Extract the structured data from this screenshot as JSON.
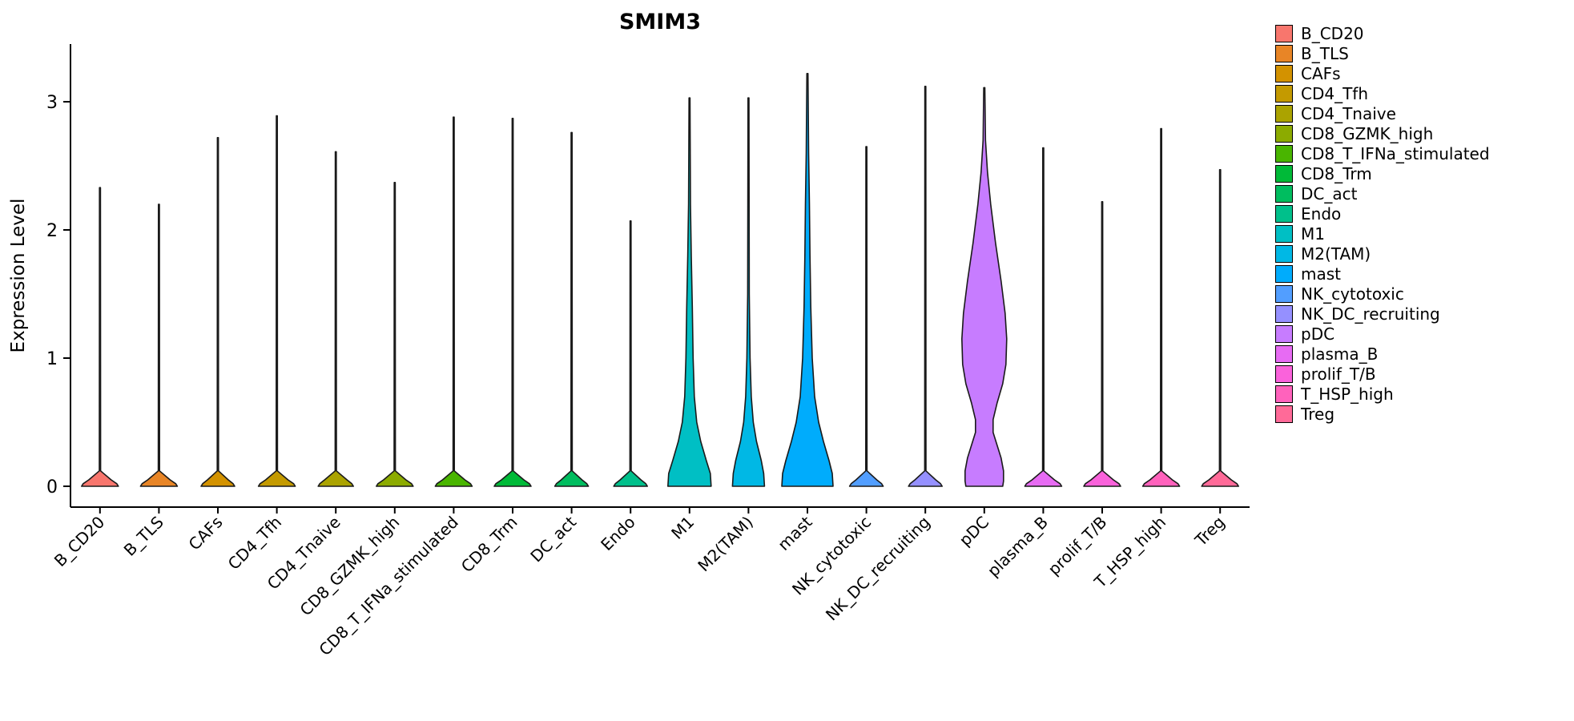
{
  "chart_data": {
    "type": "violin",
    "title": "SMIM3",
    "ylabel": "Expression Level",
    "xlabel": "",
    "yticks": [
      "0",
      "1",
      "2",
      "3"
    ],
    "ylim": [
      0,
      3.45
    ],
    "grid": false,
    "legend_position": "right",
    "categories": [
      "B_CD20",
      "B_TLS",
      "CAFs",
      "CD4_Tfh",
      "CD4_Tnaive",
      "CD8_GZMK_high",
      "CD8_T_IFNa_stimulated",
      "CD8_Trm",
      "DC_act",
      "Endo",
      "M1",
      "M2(TAM)",
      "mast",
      "NK_cytotoxic",
      "NK_DC_recruiting",
      "pDC",
      "plasma_B",
      "prolif_T/B",
      "T_HSP_high",
      "Treg"
    ],
    "series": [
      {
        "name": "B_CD20",
        "color": "#F8766D",
        "max_expression": 2.33,
        "profile": [
          [
            2.33,
            0.6
          ],
          [
            0.12,
            0.8
          ],
          [
            0.05,
            14
          ],
          [
            0.02,
            21
          ],
          [
            0,
            23
          ]
        ]
      },
      {
        "name": "B_TLS",
        "color": "#E88526",
        "max_expression": 2.2,
        "profile": [
          [
            2.2,
            0.6
          ],
          [
            0.12,
            0.8
          ],
          [
            0.05,
            14
          ],
          [
            0.02,
            21
          ],
          [
            0,
            23
          ]
        ]
      },
      {
        "name": "CAFs",
        "color": "#D39200",
        "max_expression": 2.72,
        "profile": [
          [
            2.72,
            0.6
          ],
          [
            0.12,
            0.8
          ],
          [
            0.05,
            13
          ],
          [
            0.02,
            19
          ],
          [
            0,
            21
          ]
        ]
      },
      {
        "name": "CD4_Tfh",
        "color": "#C49A00",
        "max_expression": 2.89,
        "profile": [
          [
            2.89,
            0.6
          ],
          [
            0.12,
            0.8
          ],
          [
            0.05,
            14
          ],
          [
            0.02,
            21
          ],
          [
            0,
            23
          ]
        ]
      },
      {
        "name": "CD4_Tnaive",
        "color": "#ABA300",
        "max_expression": 2.61,
        "profile": [
          [
            2.61,
            0.6
          ],
          [
            0.12,
            0.8
          ],
          [
            0.05,
            14
          ],
          [
            0.02,
            20
          ],
          [
            0,
            22
          ]
        ]
      },
      {
        "name": "CD8_GZMK_high",
        "color": "#8CAB00",
        "max_expression": 2.37,
        "profile": [
          [
            2.37,
            0.6
          ],
          [
            0.12,
            0.8
          ],
          [
            0.05,
            14
          ],
          [
            0.02,
            21
          ],
          [
            0,
            23
          ]
        ]
      },
      {
        "name": "CD8_T_IFNa_stimulated",
        "color": "#49B500",
        "max_expression": 2.88,
        "profile": [
          [
            2.88,
            0.6
          ],
          [
            0.12,
            0.8
          ],
          [
            0.05,
            14
          ],
          [
            0.02,
            21
          ],
          [
            0,
            23
          ]
        ]
      },
      {
        "name": "CD8_Trm",
        "color": "#00BA38",
        "max_expression": 2.87,
        "profile": [
          [
            2.87,
            0.6
          ],
          [
            0.12,
            0.8
          ],
          [
            0.05,
            14
          ],
          [
            0.02,
            21
          ],
          [
            0,
            23
          ]
        ]
      },
      {
        "name": "DC_act",
        "color": "#00BD5F",
        "max_expression": 2.76,
        "profile": [
          [
            2.76,
            0.6
          ],
          [
            0.12,
            0.8
          ],
          [
            0.05,
            13
          ],
          [
            0.02,
            19
          ],
          [
            0,
            21
          ]
        ]
      },
      {
        "name": "Endo",
        "color": "#00C08B",
        "max_expression": 2.07,
        "profile": [
          [
            2.07,
            0.6
          ],
          [
            0.12,
            0.8
          ],
          [
            0.05,
            13
          ],
          [
            0.02,
            19
          ],
          [
            0,
            21
          ]
        ]
      },
      {
        "name": "M1",
        "color": "#00BFC4",
        "max_expression": 3.03,
        "profile": [
          [
            3.03,
            0.6
          ],
          [
            2.2,
            1.2
          ],
          [
            1.8,
            2.2
          ],
          [
            1.4,
            3.5
          ],
          [
            1.0,
            4.5
          ],
          [
            0.7,
            6
          ],
          [
            0.5,
            9
          ],
          [
            0.35,
            14
          ],
          [
            0.2,
            21
          ],
          [
            0.1,
            26
          ],
          [
            0,
            27
          ]
        ]
      },
      {
        "name": "M2(TAM)",
        "color": "#00B8E5",
        "max_expression": 3.03,
        "profile": [
          [
            3.03,
            0.6
          ],
          [
            1.5,
            1.0
          ],
          [
            1.0,
            2.0
          ],
          [
            0.7,
            3.5
          ],
          [
            0.5,
            6
          ],
          [
            0.35,
            10
          ],
          [
            0.2,
            16
          ],
          [
            0.1,
            19
          ],
          [
            0,
            20
          ]
        ]
      },
      {
        "name": "mast",
        "color": "#00ACFC",
        "max_expression": 3.22,
        "profile": [
          [
            3.22,
            0.7
          ],
          [
            2.6,
            1.5
          ],
          [
            2.2,
            2.5
          ],
          [
            1.8,
            3.2
          ],
          [
            1.4,
            4.2
          ],
          [
            1.0,
            6
          ],
          [
            0.7,
            9
          ],
          [
            0.5,
            14
          ],
          [
            0.35,
            20
          ],
          [
            0.2,
            27
          ],
          [
            0.1,
            31
          ],
          [
            0,
            32
          ]
        ]
      },
      {
        "name": "NK_cytotoxic",
        "color": "#529EFF",
        "max_expression": 2.65,
        "profile": [
          [
            2.65,
            0.6
          ],
          [
            0.12,
            0.8
          ],
          [
            0.05,
            13
          ],
          [
            0.02,
            19
          ],
          [
            0,
            21
          ]
        ]
      },
      {
        "name": "NK_DC_recruiting",
        "color": "#9590FF",
        "max_expression": 3.12,
        "profile": [
          [
            3.12,
            0.6
          ],
          [
            0.12,
            0.8
          ],
          [
            0.05,
            13
          ],
          [
            0.02,
            19
          ],
          [
            0,
            21
          ]
        ]
      },
      {
        "name": "pDC",
        "color": "#C77CFF",
        "max_expression": 3.11,
        "profile": [
          [
            3.11,
            0.7
          ],
          [
            2.7,
            1.5
          ],
          [
            2.45,
            4
          ],
          [
            2.2,
            8
          ],
          [
            1.9,
            14
          ],
          [
            1.6,
            21
          ],
          [
            1.35,
            26
          ],
          [
            1.15,
            28
          ],
          [
            0.95,
            27
          ],
          [
            0.8,
            23
          ],
          [
            0.65,
            16
          ],
          [
            0.52,
            11
          ],
          [
            0.42,
            11
          ],
          [
            0.32,
            16
          ],
          [
            0.22,
            21
          ],
          [
            0.12,
            24
          ],
          [
            0.04,
            24
          ],
          [
            0,
            23
          ]
        ]
      },
      {
        "name": "plasma_B",
        "color": "#E76BF3",
        "max_expression": 2.64,
        "profile": [
          [
            2.64,
            0.6
          ],
          [
            0.12,
            0.8
          ],
          [
            0.05,
            14
          ],
          [
            0.02,
            21
          ],
          [
            0,
            23
          ]
        ]
      },
      {
        "name": "prolif_T/B",
        "color": "#FA62DB",
        "max_expression": 2.22,
        "profile": [
          [
            2.22,
            0.6
          ],
          [
            0.12,
            0.8
          ],
          [
            0.05,
            14
          ],
          [
            0.02,
            21
          ],
          [
            0,
            23
          ]
        ]
      },
      {
        "name": "T_HSP_high",
        "color": "#FF62BC",
        "max_expression": 2.79,
        "profile": [
          [
            2.79,
            0.6
          ],
          [
            0.12,
            0.8
          ],
          [
            0.05,
            14
          ],
          [
            0.02,
            21
          ],
          [
            0,
            23
          ]
        ]
      },
      {
        "name": "Treg",
        "color": "#FF6A98",
        "max_expression": 2.47,
        "profile": [
          [
            2.47,
            0.6
          ],
          [
            0.12,
            0.8
          ],
          [
            0.05,
            14
          ],
          [
            0.02,
            21
          ],
          [
            0,
            23
          ]
        ]
      }
    ],
    "legend": {
      "items": [
        "B_CD20",
        "B_TLS",
        "CAFs",
        "CD4_Tfh",
        "CD4_Tnaive",
        "CD8_GZMK_high",
        "CD8_T_IFNa_stimulated",
        "CD8_Trm",
        "DC_act",
        "Endo",
        "M1",
        "M2(TAM)",
        "mast",
        "NK_cytotoxic",
        "NK_DC_recruiting",
        "pDC",
        "plasma_B",
        "prolif_T/B",
        "T_HSP_high",
        "Treg"
      ]
    },
    "style": {
      "violin_edge_color": "#1a1a1a",
      "axis_color": "#000000",
      "text_color": "#000000",
      "background": "#ffffff"
    }
  }
}
